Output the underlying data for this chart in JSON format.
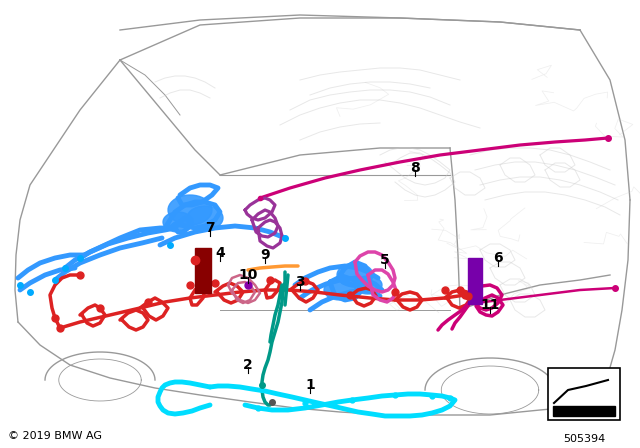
{
  "copyright": "© 2019 BMW AG",
  "part_number": "505394",
  "bg": "#ffffff",
  "car_color": "#999999",
  "ghost_color": "#cccccc",
  "colors": {
    "blue": "#3399ff",
    "blue_bright": "#00aaff",
    "cyan": "#00ddff",
    "red": "#dd2222",
    "magenta": "#cc0077",
    "magenta2": "#dd44aa",
    "purple": "#993399",
    "orange": "#ff9933",
    "teal": "#009988",
    "dark_red": "#880000",
    "pink": "#ff66cc",
    "violet": "#7700aa"
  },
  "label_fs": 10,
  "copy_fs": 8,
  "part_fs": 8
}
